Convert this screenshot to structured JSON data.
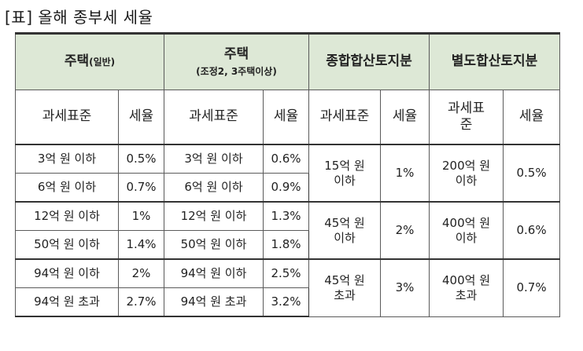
{
  "title": "[표] 올해 종부세 세율",
  "groups": {
    "housing_general": {
      "label": "주택",
      "label_suffix": "(일반)"
    },
    "housing_adjusted": {
      "label": "주택",
      "sub": "(조정2, 3주택이상)"
    },
    "aggregate_land": {
      "label": "종합합산토지분"
    },
    "separate_land": {
      "label": "별도합산토지분"
    }
  },
  "col_headers": {
    "base": "과세표준",
    "rate": "세율",
    "base_split": [
      "과세표",
      "준"
    ]
  },
  "housing_rows": [
    {
      "gen_base": "3억 원 이하",
      "gen_rate": "0.5%",
      "adj_base": "3억 원 이하",
      "adj_rate": "0.6%"
    },
    {
      "gen_base": "6억 원 이하",
      "gen_rate": "0.7%",
      "adj_base": "6억 원 이하",
      "adj_rate": "0.9%"
    },
    {
      "gen_base": "12억 원 이하",
      "gen_rate": "1%",
      "adj_base": "12억 원 이하",
      "adj_rate": "1.3%"
    },
    {
      "gen_base": "50억 원 이하",
      "gen_rate": "1.4%",
      "adj_base": "50억 원 이하",
      "adj_rate": "1.8%"
    },
    {
      "gen_base": "94억 원 이하",
      "gen_rate": "2%",
      "adj_base": "94억 원 이하",
      "adj_rate": "2.5%"
    },
    {
      "gen_base": "94억 원 초과",
      "gen_rate": "2.7%",
      "adj_base": "94억 원 초과",
      "adj_rate": "3.2%"
    }
  ],
  "land_rows": [
    {
      "agg_base": [
        "15억 원",
        "이하"
      ],
      "agg_rate": "1%",
      "sep_base": [
        "200억 원",
        "이하"
      ],
      "sep_rate": "0.5%"
    },
    {
      "agg_base": [
        "45억 원",
        "이하"
      ],
      "agg_rate": "2%",
      "sep_base": [
        "400억 원",
        "이하"
      ],
      "sep_rate": "0.6%"
    },
    {
      "agg_base": [
        "45억 원",
        "초과"
      ],
      "agg_rate": "3%",
      "sep_base": [
        "400억 원",
        "초과"
      ],
      "sep_rate": "0.7%"
    }
  ]
}
